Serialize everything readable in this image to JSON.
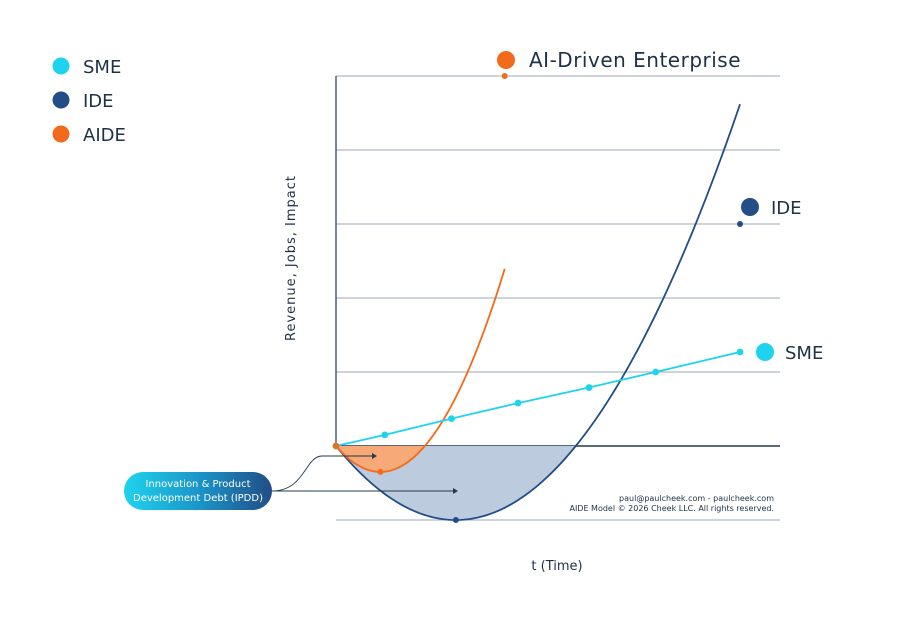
{
  "legend": [
    {
      "label": "SME",
      "color": "#1fd3ef"
    },
    {
      "label": "IDE",
      "color": "#224d86"
    },
    {
      "label": "AIDE",
      "color": "#f26a1b"
    }
  ],
  "series_labels": {
    "aide": "AI-Driven Enterprise",
    "ide": "IDE",
    "sme": "SME"
  },
  "callout": {
    "line1": "Innovation & Product",
    "line2": "Development Debt (IPDD)"
  },
  "credits": {
    "line1": "paul@paulcheek.com - paulcheek.com",
    "line2": "AIDE Model © 2026 Cheek LLC. All rights reserved."
  },
  "colors": {
    "sme": "#1fd3ef",
    "ide": "#224d86",
    "aide": "#f26a1b",
    "ide_fill": "#bccbdd",
    "aide_fill": "#f7a977",
    "grid": "#7d8ea0",
    "text": "#1f3047"
  },
  "chart_data": {
    "type": "line",
    "xlabel": "t (Time)",
    "ylabel": "Revenue, Jobs, Impact",
    "xlim": [
      0,
      10
    ],
    "ylim": [
      -1,
      5
    ],
    "grid": true,
    "legend_position": "top-left",
    "series": [
      {
        "name": "SME",
        "shape": "linear",
        "x": [
          0,
          1.1,
          2.6,
          4.1,
          5.7,
          7.2,
          9.1
        ],
        "y": [
          0,
          0.15,
          0.37,
          0.58,
          0.79,
          1.0,
          1.27
        ]
      },
      {
        "name": "IDE",
        "shape": "parabola",
        "x": [
          0,
          2.7,
          9.1
        ],
        "y": [
          0,
          -1,
          3
        ],
        "shaded_area_below_zero": true
      },
      {
        "name": "AIDE",
        "shape": "parabola",
        "x": [
          0,
          1.0,
          3.8
        ],
        "y": [
          0,
          -0.35,
          5
        ],
        "shaded_area_below_zero": true
      }
    ]
  }
}
